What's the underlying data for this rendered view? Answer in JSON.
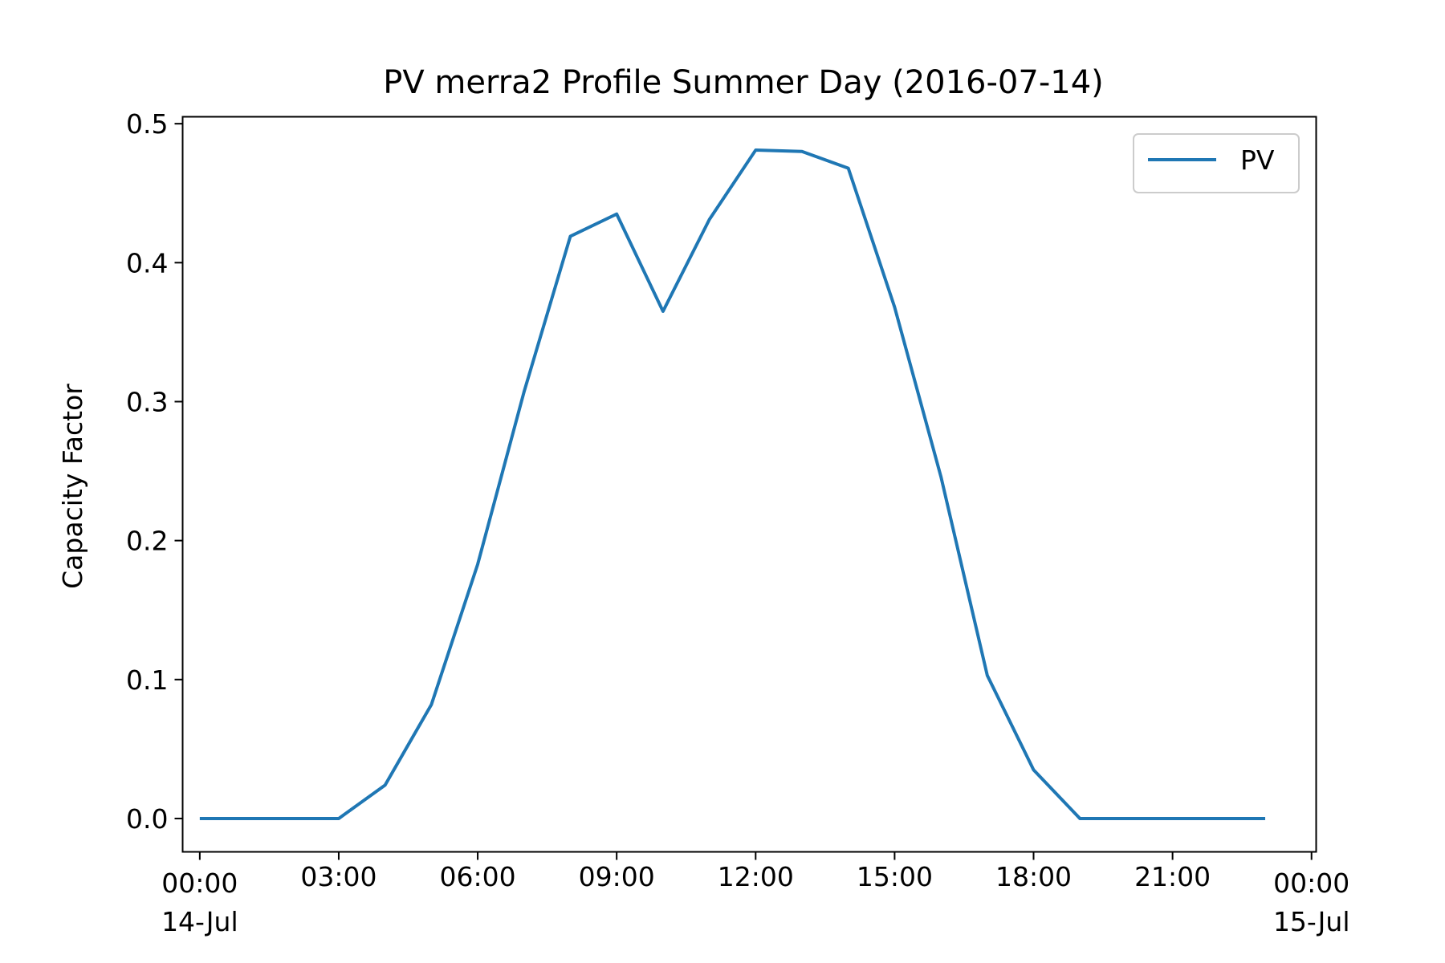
{
  "chart_data": {
    "type": "line",
    "title": "PV merra2 Profile Summer Day (2016-07-14)",
    "xlabel": "",
    "ylabel": "Capacity Factor",
    "x": [
      "00:00",
      "01:00",
      "02:00",
      "03:00",
      "04:00",
      "05:00",
      "06:00",
      "07:00",
      "08:00",
      "09:00",
      "10:00",
      "11:00",
      "12:00",
      "13:00",
      "14:00",
      "15:00",
      "16:00",
      "17:00",
      "18:00",
      "19:00",
      "20:00",
      "21:00",
      "22:00",
      "23:00"
    ],
    "xlim": [
      -0.37,
      24.1
    ],
    "ylim": [
      -0.024,
      0.505
    ],
    "series": [
      {
        "name": "PV",
        "color": "#1f77b4",
        "values": [
          0.0,
          0.0,
          0.0,
          0.0,
          0.024,
          0.082,
          0.183,
          0.307,
          0.419,
          0.435,
          0.365,
          0.431,
          0.481,
          0.48,
          0.468,
          0.368,
          0.246,
          0.103,
          0.035,
          0.0,
          0.0,
          0.0,
          0.0,
          0.0
        ]
      }
    ],
    "xticks": [
      {
        "pos": 0,
        "line1": "00:00",
        "line2": "14-Jul"
      },
      {
        "pos": 3,
        "line1": "03:00",
        "line2": ""
      },
      {
        "pos": 6,
        "line1": "06:00",
        "line2": ""
      },
      {
        "pos": 9,
        "line1": "09:00",
        "line2": ""
      },
      {
        "pos": 12,
        "line1": "12:00",
        "line2": ""
      },
      {
        "pos": 15,
        "line1": "15:00",
        "line2": ""
      },
      {
        "pos": 18,
        "line1": "18:00",
        "line2": ""
      },
      {
        "pos": 21,
        "line1": "21:00",
        "line2": ""
      },
      {
        "pos": 24,
        "line1": "00:00",
        "line2": "15-Jul"
      }
    ],
    "yticks": [
      {
        "value": 0.0,
        "label": "0.0"
      },
      {
        "value": 0.1,
        "label": "0.1"
      },
      {
        "value": 0.2,
        "label": "0.2"
      },
      {
        "value": 0.3,
        "label": "0.3"
      },
      {
        "value": 0.4,
        "label": "0.4"
      },
      {
        "value": 0.5,
        "label": "0.5"
      }
    ],
    "grid": false,
    "legend": {
      "placement": "top-right",
      "entries": [
        "PV"
      ]
    }
  }
}
